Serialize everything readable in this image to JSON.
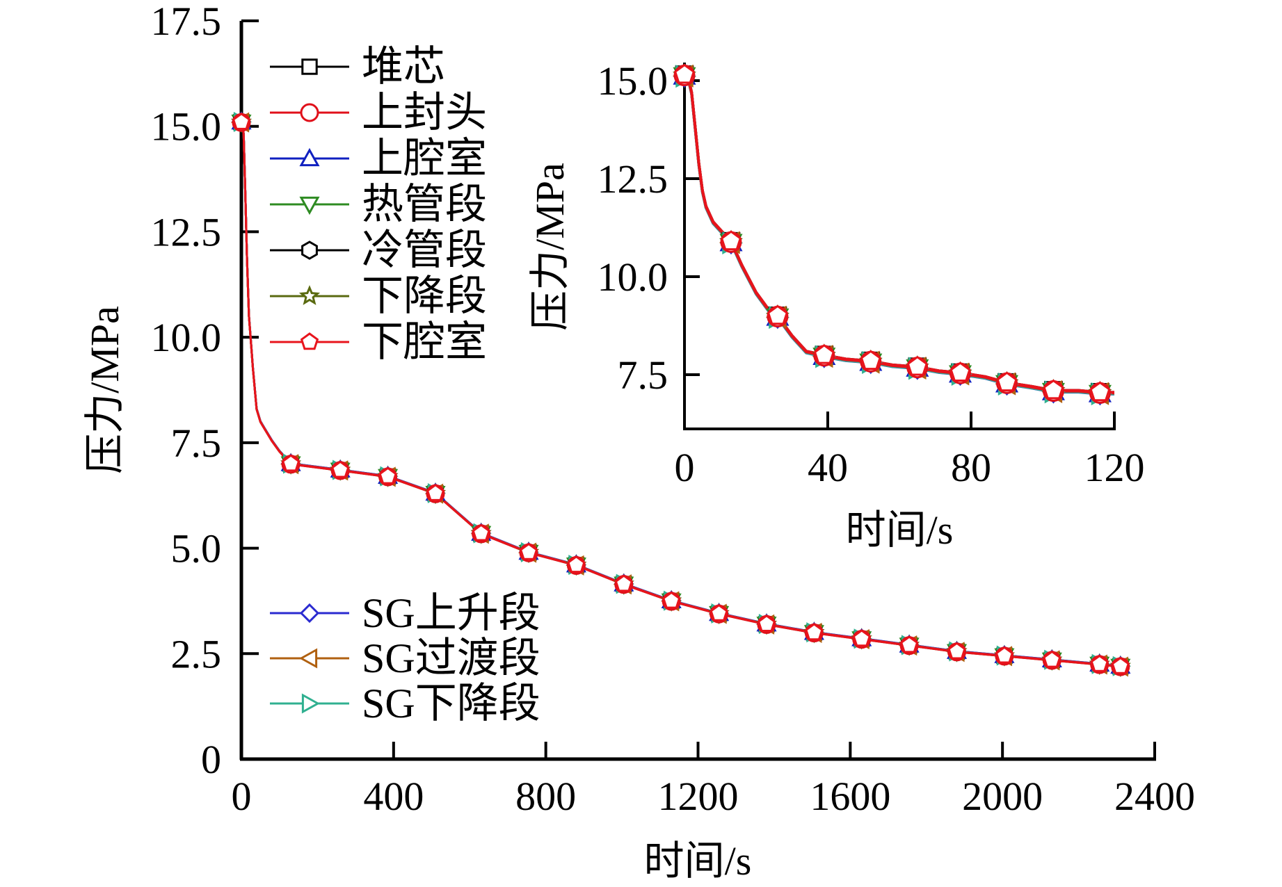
{
  "chart_data": [
    {
      "id": "main",
      "type": "line",
      "title": "",
      "xlabel": "时间/s",
      "ylabel": "压力/MPa",
      "xlim": [
        0,
        2400
      ],
      "ylim": [
        0,
        17.5
      ],
      "x_ticks": [
        0,
        400,
        800,
        1200,
        1600,
        2000,
        2400
      ],
      "x_tick_labels": [
        "0",
        "400",
        "800",
        "1200",
        "1600",
        "2000",
        "2400"
      ],
      "y_ticks": [
        0,
        2.5,
        5.0,
        7.5,
        10.0,
        12.5,
        15.0,
        17.5
      ],
      "y_tick_labels": [
        "0",
        "2.5",
        "5.0",
        "7.5",
        "10.0",
        "12.5",
        "15.0",
        "17.5"
      ],
      "grid": false,
      "curve": {
        "x": [
          0,
          3,
          6,
          10,
          15,
          20,
          25,
          30,
          40,
          50,
          60,
          80,
          100,
          130,
          260,
          385,
          510,
          630,
          755,
          880,
          1005,
          1130,
          1255,
          1380,
          1505,
          1630,
          1755,
          1880,
          2005,
          2130,
          2255,
          2310
        ],
        "y": [
          15.3,
          15.1,
          14.8,
          13.5,
          11.8,
          10.5,
          9.9,
          9.3,
          8.3,
          8.0,
          7.85,
          7.55,
          7.3,
          7.0,
          6.85,
          6.7,
          6.3,
          5.35,
          4.9,
          4.6,
          4.15,
          3.75,
          3.45,
          3.2,
          3.0,
          2.85,
          2.7,
          2.55,
          2.45,
          2.35,
          2.25,
          2.2
        ]
      },
      "markers_x": [
        0,
        130,
        260,
        385,
        510,
        630,
        755,
        880,
        1005,
        1130,
        1255,
        1380,
        1505,
        1630,
        1755,
        1880,
        2005,
        2130,
        2255,
        2310
      ],
      "markers_y": [
        15.1,
        7.0,
        6.85,
        6.7,
        6.3,
        5.35,
        4.9,
        4.6,
        4.15,
        3.75,
        3.45,
        3.2,
        3.0,
        2.85,
        2.7,
        2.55,
        2.45,
        2.35,
        2.25,
        2.2
      ],
      "note_series": "all 10 series nearly overlap; drawn as coincident curves",
      "legend_placement": "top-left and bottom-left",
      "series": [
        {
          "name": "堆芯",
          "color": "#000000",
          "marker": "square"
        },
        {
          "name": "上封头",
          "color": "#e0101a",
          "marker": "circle"
        },
        {
          "name": "上腔室",
          "color": "#1020c0",
          "marker": "triangle-up"
        },
        {
          "name": "热管段",
          "color": "#2e8b22",
          "marker": "triangle-down"
        },
        {
          "name": "冷管段",
          "color": "#000000",
          "marker": "hexagon"
        },
        {
          "name": "下降段",
          "color": "#5a6a10",
          "marker": "star"
        },
        {
          "name": "下腔室",
          "color": "#e8141c",
          "marker": "pentagon"
        },
        {
          "name": "SG上升段",
          "color": "#2a2ad0",
          "marker": "diamond"
        },
        {
          "name": "SG过渡段",
          "color": "#b06010",
          "marker": "triangle-left"
        },
        {
          "name": "SG下降段",
          "color": "#30b090",
          "marker": "triangle-right"
        }
      ]
    },
    {
      "id": "inset",
      "type": "line",
      "title": "",
      "xlabel": "时间/s",
      "ylabel": "压力/MPa",
      "xlim": [
        0,
        120
      ],
      "ylim": [
        6.1,
        15.45
      ],
      "x_ticks": [
        0,
        40,
        80,
        120
      ],
      "x_tick_labels": [
        "0",
        "40",
        "80",
        "120"
      ],
      "y_ticks": [
        7.5,
        10.0,
        12.5,
        15.0
      ],
      "y_tick_labels": [
        "7.5",
        "10.0",
        "12.5",
        "15.0"
      ],
      "grid": false,
      "curve": {
        "x": [
          0,
          1,
          2,
          3,
          4,
          5,
          6,
          8,
          10,
          13,
          16,
          20,
          24,
          26,
          30,
          34,
          39,
          45,
          52,
          58,
          65,
          71,
          77,
          84,
          90,
          97,
          103,
          110,
          116,
          120
        ],
        "y": [
          15.3,
          15.1,
          14.7,
          13.8,
          12.9,
          12.2,
          11.8,
          11.4,
          11.2,
          10.9,
          10.3,
          9.6,
          9.1,
          9.0,
          8.5,
          8.1,
          8.0,
          7.9,
          7.85,
          7.75,
          7.7,
          7.6,
          7.55,
          7.45,
          7.3,
          7.2,
          7.1,
          7.1,
          7.05,
          7.05
        ]
      },
      "markers_x": [
        0,
        13,
        26,
        39,
        52,
        65,
        77,
        90,
        103,
        116
      ],
      "markers_y": [
        15.15,
        10.9,
        9.0,
        8.0,
        7.85,
        7.7,
        7.55,
        7.3,
        7.1,
        7.05
      ]
    }
  ],
  "legend_groups": {
    "top": [
      "堆芯",
      "上封头",
      "上腔室",
      "热管段",
      "冷管段",
      "下降段",
      "下腔室"
    ],
    "bottom": [
      "SG上升段",
      "SG过渡段",
      "SG下降段"
    ]
  }
}
